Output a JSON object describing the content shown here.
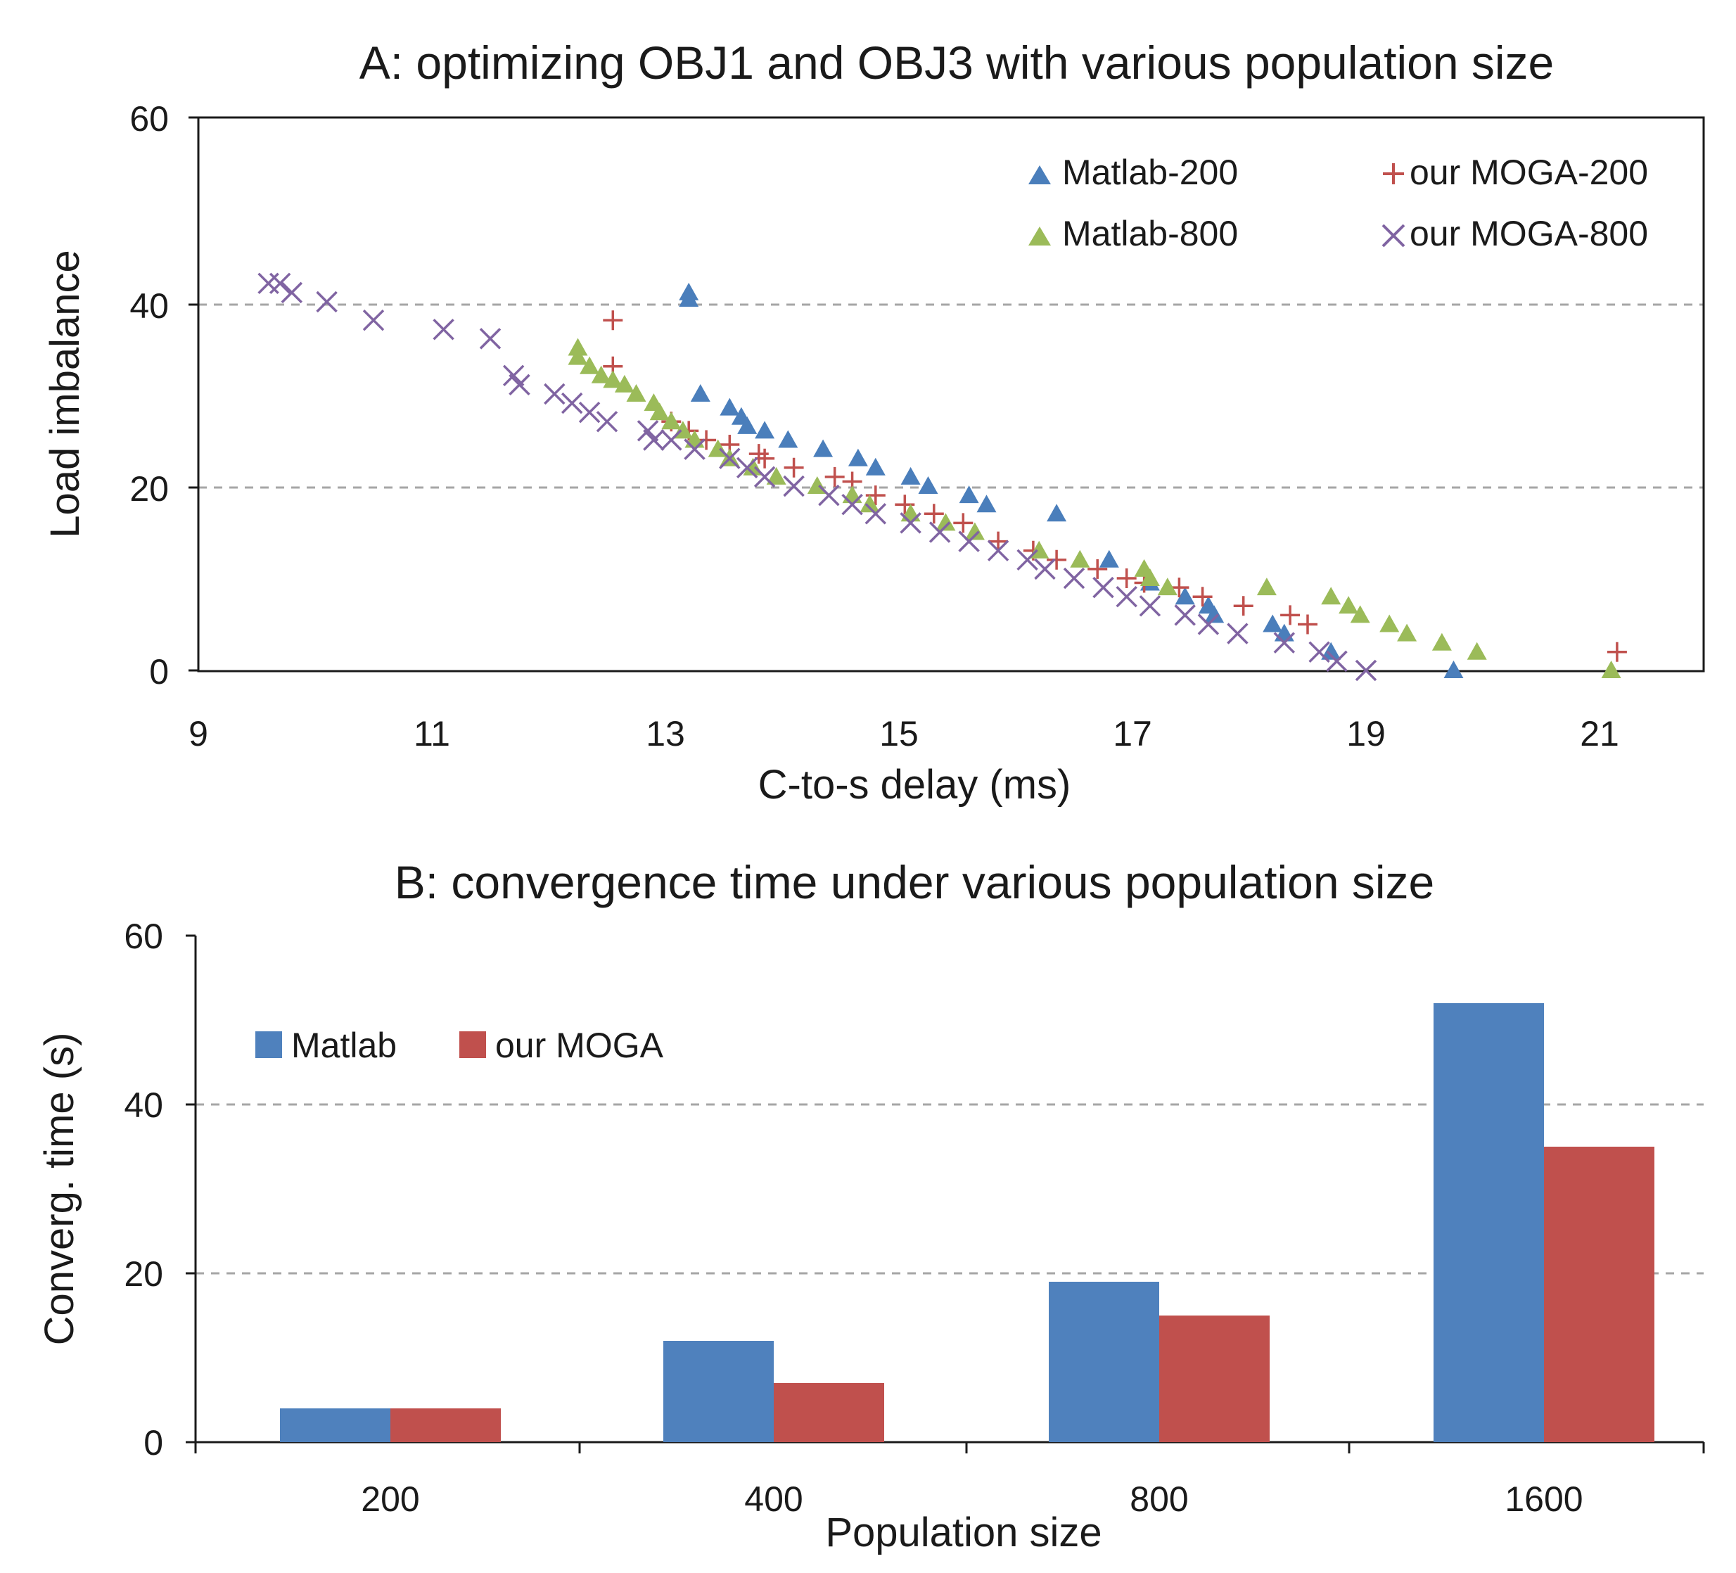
{
  "chart_data": [
    {
      "type": "scatter",
      "title": "A: optimizing OBJ1 and OBJ3 with various population size",
      "xlabel": "C-to-s delay (ms)",
      "ylabel": "Load imbalance",
      "xlim": [
        9,
        22
      ],
      "ylim": [
        0,
        60
      ],
      "xticks": [
        "9",
        "11",
        "13",
        "15",
        "17",
        "19",
        "21"
      ],
      "yticks": [
        "0",
        "20",
        "40",
        "60"
      ],
      "grid": "horizontal dashed",
      "legend_position": "top-right",
      "series": [
        {
          "name": "Matlab-200",
          "marker": "triangle",
          "color": "#4A7EBB",
          "points": [
            [
              13.2,
              41
            ],
            [
              13.2,
              40.3
            ],
            [
              13.3,
              30
            ],
            [
              13.55,
              28.5
            ],
            [
              13.65,
              27.5
            ],
            [
              13.7,
              26.5
            ],
            [
              13.85,
              26
            ],
            [
              14.05,
              25
            ],
            [
              14.35,
              24
            ],
            [
              14.65,
              23
            ],
            [
              14.8,
              22
            ],
            [
              15.1,
              21
            ],
            [
              15.25,
              20
            ],
            [
              15.6,
              19
            ],
            [
              15.75,
              18
            ],
            [
              16.35,
              17
            ],
            [
              16.8,
              12
            ],
            [
              17.15,
              9.5
            ],
            [
              17.45,
              8
            ],
            [
              17.65,
              7
            ],
            [
              17.7,
              6
            ],
            [
              18.2,
              5
            ],
            [
              18.3,
              4
            ],
            [
              18.7,
              2
            ],
            [
              19.75,
              0
            ]
          ]
        },
        {
          "name": "our MOGA-200",
          "marker": "plus",
          "color": "#C0504D",
          "points": [
            [
              12.55,
              38
            ],
            [
              12.55,
              33
            ],
            [
              13.05,
              27
            ],
            [
              13.2,
              26
            ],
            [
              13.35,
              25
            ],
            [
              13.55,
              24.5
            ],
            [
              13.8,
              23.5
            ],
            [
              13.85,
              23
            ],
            [
              14.1,
              22
            ],
            [
              14.45,
              21
            ],
            [
              14.6,
              20.5
            ],
            [
              14.8,
              19
            ],
            [
              15.05,
              18
            ],
            [
              15.3,
              17
            ],
            [
              15.55,
              16
            ],
            [
              15.85,
              14
            ],
            [
              16.15,
              13
            ],
            [
              16.35,
              12
            ],
            [
              16.7,
              11
            ],
            [
              16.95,
              10
            ],
            [
              17.1,
              9.5
            ],
            [
              17.4,
              9
            ],
            [
              17.6,
              8
            ],
            [
              17.95,
              7
            ],
            [
              18.35,
              6
            ],
            [
              18.5,
              5
            ],
            [
              21.15,
              2
            ]
          ]
        },
        {
          "name": "Matlab-800",
          "marker": "triangle",
          "color": "#9BBB59",
          "points": [
            [
              12.25,
              35
            ],
            [
              12.25,
              34
            ],
            [
              12.35,
              33
            ],
            [
              12.45,
              32
            ],
            [
              12.55,
              31.5
            ],
            [
              12.65,
              31
            ],
            [
              12.75,
              30
            ],
            [
              12.9,
              29
            ],
            [
              12.95,
              28
            ],
            [
              13.05,
              27
            ],
            [
              13.15,
              26
            ],
            [
              13.25,
              25
            ],
            [
              13.45,
              24
            ],
            [
              13.55,
              23
            ],
            [
              13.75,
              22
            ],
            [
              13.95,
              21
            ],
            [
              14.3,
              20
            ],
            [
              14.6,
              19
            ],
            [
              14.75,
              18
            ],
            [
              15.1,
              17
            ],
            [
              15.4,
              16
            ],
            [
              15.65,
              15
            ],
            [
              16.2,
              13
            ],
            [
              16.55,
              12
            ],
            [
              17.1,
              11
            ],
            [
              17.15,
              10
            ],
            [
              17.3,
              9
            ],
            [
              18.15,
              9
            ],
            [
              18.7,
              8
            ],
            [
              18.85,
              7
            ],
            [
              18.95,
              6
            ],
            [
              19.2,
              5
            ],
            [
              19.35,
              4
            ],
            [
              19.65,
              3
            ],
            [
              19.95,
              2
            ],
            [
              21.1,
              0
            ]
          ]
        },
        {
          "name": "our MOGA-800",
          "marker": "x",
          "color": "#8064A2",
          "points": [
            [
              9.6,
              42
            ],
            [
              9.7,
              42
            ],
            [
              9.8,
              41
            ],
            [
              10.1,
              40
            ],
            [
              10.5,
              38
            ],
            [
              11.1,
              37
            ],
            [
              11.5,
              36
            ],
            [
              11.7,
              32
            ],
            [
              11.75,
              31
            ],
            [
              12.05,
              30
            ],
            [
              12.2,
              29
            ],
            [
              12.35,
              28
            ],
            [
              12.5,
              27
            ],
            [
              12.85,
              26
            ],
            [
              12.9,
              25
            ],
            [
              13.05,
              25
            ],
            [
              13.25,
              24
            ],
            [
              13.55,
              23
            ],
            [
              13.7,
              22
            ],
            [
              13.85,
              21
            ],
            [
              14.1,
              20
            ],
            [
              14.4,
              19
            ],
            [
              14.6,
              18
            ],
            [
              14.8,
              17
            ],
            [
              15.1,
              16
            ],
            [
              15.35,
              15
            ],
            [
              15.6,
              14
            ],
            [
              15.85,
              13
            ],
            [
              16.1,
              12
            ],
            [
              16.25,
              11
            ],
            [
              16.5,
              10
            ],
            [
              16.75,
              9
            ],
            [
              16.95,
              8
            ],
            [
              17.15,
              7
            ],
            [
              17.45,
              6
            ],
            [
              17.65,
              5
            ],
            [
              17.9,
              4
            ],
            [
              18.3,
              3
            ],
            [
              18.6,
              2
            ],
            [
              18.75,
              1
            ],
            [
              19.0,
              0
            ]
          ]
        }
      ]
    },
    {
      "type": "bar",
      "title": "B: convergence time under various population size",
      "xlabel": "Population size",
      "ylabel": "Converg. time (s)",
      "ylim": [
        0,
        60
      ],
      "yticks": [
        "0",
        "20",
        "40",
        "60"
      ],
      "grid": "horizontal dashed",
      "legend_position": "top-left",
      "categories": [
        "200",
        "400",
        "800",
        "1600"
      ],
      "series": [
        {
          "name": "Matlab",
          "color": "#4F81BD",
          "values": [
            4,
            12,
            19,
            52
          ]
        },
        {
          "name": "our MOGA",
          "color": "#C0504D",
          "values": [
            4,
            7,
            15,
            35
          ]
        }
      ]
    }
  ]
}
